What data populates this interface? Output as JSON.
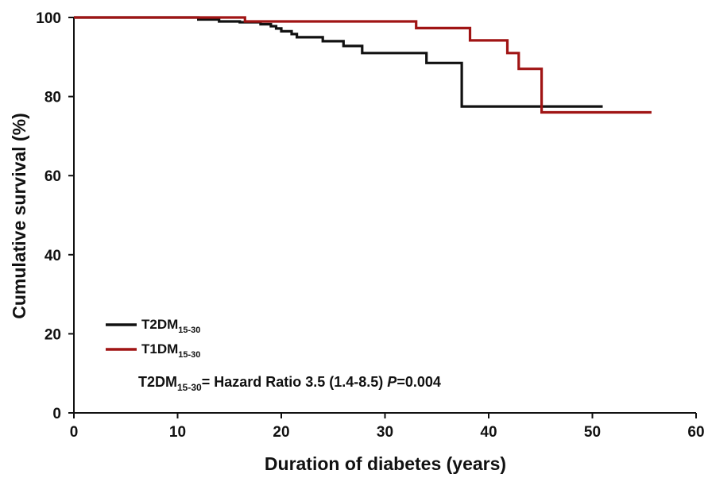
{
  "chart_data": {
    "type": "line",
    "step": true,
    "xlabel": "Duration of diabetes (years)",
    "ylabel": "Cumulative survival (%)",
    "xlim": [
      0,
      60
    ],
    "ylim": [
      0,
      100
    ],
    "x_ticks": [
      0,
      10,
      20,
      30,
      40,
      50,
      60
    ],
    "y_ticks": [
      0,
      20,
      40,
      60,
      80,
      100
    ],
    "grid": false,
    "legend_position": "bottom-left",
    "series": [
      {
        "name_main": "T2DM",
        "name_sub": "15-30",
        "color": "#111111",
        "points": [
          [
            0,
            100
          ],
          [
            12,
            100
          ],
          [
            12,
            99.5
          ],
          [
            14,
            99.5
          ],
          [
            14,
            99
          ],
          [
            16,
            99
          ],
          [
            16,
            98.8
          ],
          [
            18,
            98.8
          ],
          [
            18,
            98.3
          ],
          [
            19,
            98.3
          ],
          [
            19,
            97.8
          ],
          [
            19.5,
            97.8
          ],
          [
            19.5,
            97.2
          ],
          [
            20,
            97.2
          ],
          [
            20,
            96.5
          ],
          [
            21,
            96.5
          ],
          [
            21,
            95.8
          ],
          [
            21.5,
            95.8
          ],
          [
            21.5,
            95
          ],
          [
            24,
            95
          ],
          [
            24,
            94
          ],
          [
            26,
            94
          ],
          [
            26,
            92.8
          ],
          [
            27.8,
            92.8
          ],
          [
            27.8,
            91
          ],
          [
            34,
            91
          ],
          [
            34,
            88.5
          ],
          [
            37.4,
            88.5
          ],
          [
            37.4,
            77.5
          ],
          [
            51,
            77.5
          ]
        ]
      },
      {
        "name_main": "T1DM",
        "name_sub": "15-30",
        "color": "#a01414",
        "points": [
          [
            0,
            100
          ],
          [
            16.5,
            100
          ],
          [
            16.5,
            99
          ],
          [
            33,
            99
          ],
          [
            33,
            97.3
          ],
          [
            38.2,
            97.3
          ],
          [
            38.2,
            94.2
          ],
          [
            41.8,
            94.2
          ],
          [
            41.8,
            91
          ],
          [
            42.9,
            91
          ],
          [
            42.9,
            87
          ],
          [
            45.1,
            87
          ],
          [
            45.1,
            76
          ],
          [
            55.7,
            76
          ]
        ]
      }
    ],
    "annotation": {
      "main": "T2DM",
      "sub": "15-30",
      "rest": "= Hazard Ratio 3.5 (1.4-8.5) ",
      "p_label": "P",
      "p_value": "=0.004"
    }
  }
}
